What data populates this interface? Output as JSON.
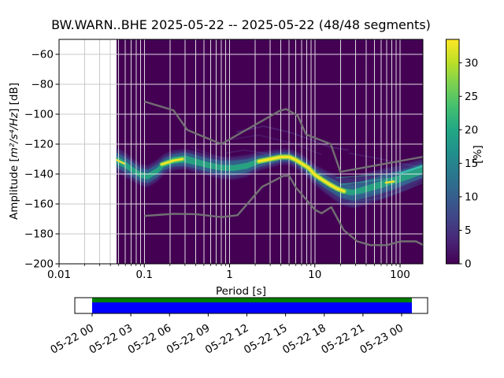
{
  "title": "BW.WARN..BHE   2025-05-22 -- 2025-05-22  (48/48 segments)",
  "axes": {
    "xlabel": "Period [s]",
    "ylabel_prefix": "Amplitude [",
    "ylabel_math": "m²/s⁴/Hz",
    "ylabel_suffix": "] [dB]",
    "x_tick_labels": [
      "0.01",
      "0.1",
      "1",
      "10",
      "100"
    ],
    "y_tick_labels": [
      "−200",
      "−180",
      "−160",
      "−140",
      "−120",
      "−100",
      "−80",
      "−60"
    ]
  },
  "colorbar": {
    "label": "[%]",
    "tick_labels": [
      "0",
      "5",
      "10",
      "15",
      "20",
      "25",
      "30"
    ]
  },
  "coverage": {
    "tick_labels": [
      "05-22 00",
      "05-22 03",
      "05-22 06",
      "05-22 09",
      "05-22 12",
      "05-22 15",
      "05-22 18",
      "05-22 21",
      "05-23 00"
    ]
  },
  "chart_data": {
    "type": "heatmap",
    "subtype": "ppsd-probabilistic-power-spectral-density",
    "station": "BW.WARN..BHE",
    "date_range": "2025-05-22 -- 2025-05-22",
    "segments_used": 48,
    "segments_total": 48,
    "title": "BW.WARN..BHE   2025-05-22 -- 2025-05-22  (48/48 segments)",
    "xlabel": "Period [s]",
    "ylabel": "Amplitude [m²/s⁴/Hz] [dB]",
    "xscale": "log",
    "xlim": [
      0.01,
      185
    ],
    "ylim": [
      -200,
      -50
    ],
    "x_major_ticks": [
      0.01,
      0.1,
      1,
      10,
      100
    ],
    "y_major_ticks": [
      -200,
      -180,
      -160,
      -140,
      -120,
      -100,
      -80,
      -60
    ],
    "grid": true,
    "colorbar": {
      "label": "[%]",
      "vmin": 0,
      "vmax": 33.5,
      "ticks": [
        0,
        5,
        10,
        15,
        20,
        25,
        30
      ],
      "colormap": "viridis"
    },
    "colors": {
      "psd_background": "#440154",
      "grid_on_white": "#c9c9c9",
      "grid_on_psd": "#f0f0f0",
      "noise_model": "#757575",
      "coverage_green": "#008000",
      "coverage_blue": "#0000ff",
      "band_outer": "#453781",
      "band_mid": "#33638d",
      "band_inner": "#27a181",
      "mode_yellow": "#f5e626",
      "viridis_stops": [
        "#440154",
        "#482475",
        "#414487",
        "#355f8d",
        "#2a788e",
        "#21918c",
        "#22a884",
        "#44bf70",
        "#7ad151",
        "#bddf26",
        "#fde725"
      ]
    },
    "psd": {
      "period_range_s": [
        0.047,
        185
      ],
      "band": [
        [
          0.044,
          -130.0,
          8,
          5,
          2.5
        ],
        [
          0.055,
          -132.5,
          8,
          5,
          2.5
        ],
        [
          0.07,
          -136.5,
          7.5,
          5,
          2
        ],
        [
          0.09,
          -140.5,
          7,
          4.5,
          2
        ],
        [
          0.11,
          -141.5,
          7,
          4.5,
          2
        ],
        [
          0.14,
          -138.0,
          7,
          4.5,
          2
        ],
        [
          0.17,
          -133.5,
          6.5,
          4,
          2
        ],
        [
          0.22,
          -130.8,
          6.5,
          4.2,
          2.2
        ],
        [
          0.3,
          -130.0,
          6.5,
          4.5,
          2.4
        ],
        [
          0.4,
          -131.8,
          7,
          4.6,
          2.2
        ],
        [
          0.55,
          -134.0,
          7,
          4.6,
          2
        ],
        [
          0.8,
          -135.8,
          7.2,
          4.8,
          2
        ],
        [
          1.1,
          -136.0,
          7.5,
          5,
          2
        ],
        [
          1.6,
          -134.5,
          7,
          4.5,
          2
        ],
        [
          2.2,
          -131.5,
          6,
          3.8,
          1.8
        ],
        [
          3.0,
          -130.0,
          5.5,
          3.4,
          1.6
        ],
        [
          4.0,
          -128.6,
          5,
          3,
          1.5
        ],
        [
          5.0,
          -128.6,
          5,
          3,
          1.5
        ],
        [
          6.0,
          -130.5,
          5.5,
          3.2,
          1.5
        ],
        [
          7.5,
          -134.0,
          6,
          3.5,
          1.5
        ],
        [
          10,
          -140.5,
          6.5,
          4,
          1.5
        ],
        [
          14,
          -146.0,
          7.5,
          4.5,
          1.6
        ],
        [
          20,
          -151.0,
          9,
          5,
          1.8
        ],
        [
          28,
          -152.5,
          10,
          5.5,
          2
        ],
        [
          40,
          -150.0,
          10.5,
          6,
          2.2
        ],
        [
          60,
          -147.0,
          10,
          6,
          2.4
        ],
        [
          90,
          -144.0,
          9.5,
          5.8,
          2.5
        ],
        [
          130,
          -140.8,
          8.5,
          5.2,
          2.5
        ],
        [
          185,
          -137.5,
          7.5,
          4.8,
          2.5
        ]
      ],
      "mode_highlights": [
        {
          "points": [
            [
              0.047,
              -130.5
            ],
            [
              0.058,
              -133
            ]
          ],
          "color": "#e8e33b",
          "width": 2.4
        },
        {
          "points": [
            [
              0.16,
              -133.5
            ],
            [
              0.22,
              -131
            ],
            [
              0.28,
              -130
            ]
          ],
          "color": "#f5e626",
          "width": 2.6,
          "casing": "#7ed34f"
        },
        {
          "points": [
            [
              2.2,
              -131.5
            ],
            [
              3,
              -130
            ],
            [
              4,
              -128.6
            ],
            [
              5,
              -128.6
            ],
            [
              6,
              -130.5
            ],
            [
              7,
              -133
            ],
            [
              8.5,
              -136
            ],
            [
              10,
              -140.5
            ],
            [
              12,
              -143.5
            ],
            [
              15,
              -147
            ],
            [
              18,
              -149.5
            ],
            [
              22,
              -151.5
            ]
          ],
          "color": "#f5e626",
          "width": 3.2,
          "casing": "#8bd646"
        },
        {
          "points": [
            [
              68,
              -145.8
            ],
            [
              85,
              -145
            ]
          ],
          "color": "#f0e32f",
          "width": 2.4
        },
        {
          "points": [
            [
              100,
              -139.5
            ],
            [
              130,
              -137.5
            ],
            [
              185,
              -134.5
            ]
          ],
          "color": "#39c0ae",
          "width": 2.4
        }
      ],
      "fan_streaks": [
        {
          "points": [
            [
              18,
              -142.5
            ],
            [
              40,
              -141
            ],
            [
              90,
              -139.5
            ],
            [
              185,
              -136.5
            ]
          ],
          "color": "#2f9e8f",
          "width": 1.3,
          "opacity": 0.6
        },
        {
          "points": [
            [
              20,
              -147
            ],
            [
              40,
              -145
            ],
            [
              80,
              -142.5
            ],
            [
              185,
              -138.5
            ]
          ],
          "color": "#2f9e8f",
          "width": 1.4,
          "opacity": 0.75
        },
        {
          "points": [
            [
              22,
              -155
            ],
            [
              50,
              -152
            ],
            [
              100,
              -147
            ],
            [
              185,
              -142
            ]
          ],
          "color": "#3b6fa0",
          "width": 1.4,
          "opacity": 0.6
        },
        {
          "points": [
            [
              25,
              -159
            ],
            [
              60,
              -156
            ],
            [
              120,
              -150
            ],
            [
              185,
              -146
            ]
          ],
          "color": "#365c8d",
          "width": 1.3,
          "opacity": 0.5
        }
      ],
      "faint_traces": [
        {
          "points": [
            [
              1.2,
              -112
            ],
            [
              2.5,
              -108
            ],
            [
              5,
              -112
            ],
            [
              8,
              -116
            ],
            [
              15,
              -122
            ],
            [
              25,
              -124
            ]
          ],
          "opacity": 0.28
        },
        {
          "points": [
            [
              1.0,
              -117
            ],
            [
              2.2,
              -114
            ],
            [
              6,
              -120
            ],
            [
              12,
              -127
            ]
          ],
          "opacity": 0.18
        },
        {
          "points": [
            [
              0.9,
              -126
            ],
            [
              1.5,
              -124
            ],
            [
              2.8,
              -126.5
            ]
          ],
          "opacity": 0.2
        },
        {
          "points": [
            [
              25,
              -126
            ],
            [
              60,
              -130
            ],
            [
              185,
              -136
            ]
          ],
          "opacity": 0.22
        },
        {
          "points": [
            [
              0.35,
              -122
            ],
            [
              0.9,
              -130
            ]
          ],
          "opacity": 0.15
        }
      ]
    },
    "noise_models": {
      "name": "Peterson 1993 NLNM/NHNM",
      "nhnm": [
        [
          0.1,
          -91.5
        ],
        [
          0.22,
          -97.4
        ],
        [
          0.32,
          -110.5
        ],
        [
          0.8,
          -120
        ],
        [
          3.8,
          -98
        ],
        [
          4.6,
          -96.5
        ],
        [
          6.3,
          -101
        ],
        [
          7.9,
          -113.5
        ],
        [
          15.4,
          -120
        ],
        [
          20,
          -138.5
        ],
        [
          185,
          -128.5
        ]
      ],
      "nlnm": [
        [
          0.1,
          -168
        ],
        [
          0.22,
          -166.6
        ],
        [
          0.4,
          -166.8
        ],
        [
          0.8,
          -168.8
        ],
        [
          1.24,
          -167.5
        ],
        [
          2.4,
          -148.6
        ],
        [
          4.3,
          -141.2
        ],
        [
          5,
          -141.2
        ],
        [
          6,
          -149
        ],
        [
          10,
          -163.8
        ],
        [
          12,
          -166.2
        ],
        [
          15.6,
          -162.1
        ],
        [
          21.9,
          -177.5
        ],
        [
          31.6,
          -185
        ],
        [
          45,
          -187.5
        ],
        [
          70,
          -187.5
        ],
        [
          101,
          -185
        ],
        [
          154,
          -185
        ],
        [
          185,
          -187.3
        ]
      ]
    },
    "coverage": {
      "start_label": "05-22 00",
      "end_label": "05-23 00",
      "tick_labels": [
        "05-22 00",
        "05-22 03",
        "05-22 06",
        "05-22 09",
        "05-22 12",
        "05-22 15",
        "05-22 18",
        "05-22 21",
        "05-23 00"
      ],
      "data_bar_color": "#008000",
      "psd_bar_color": "#0000ff"
    }
  }
}
